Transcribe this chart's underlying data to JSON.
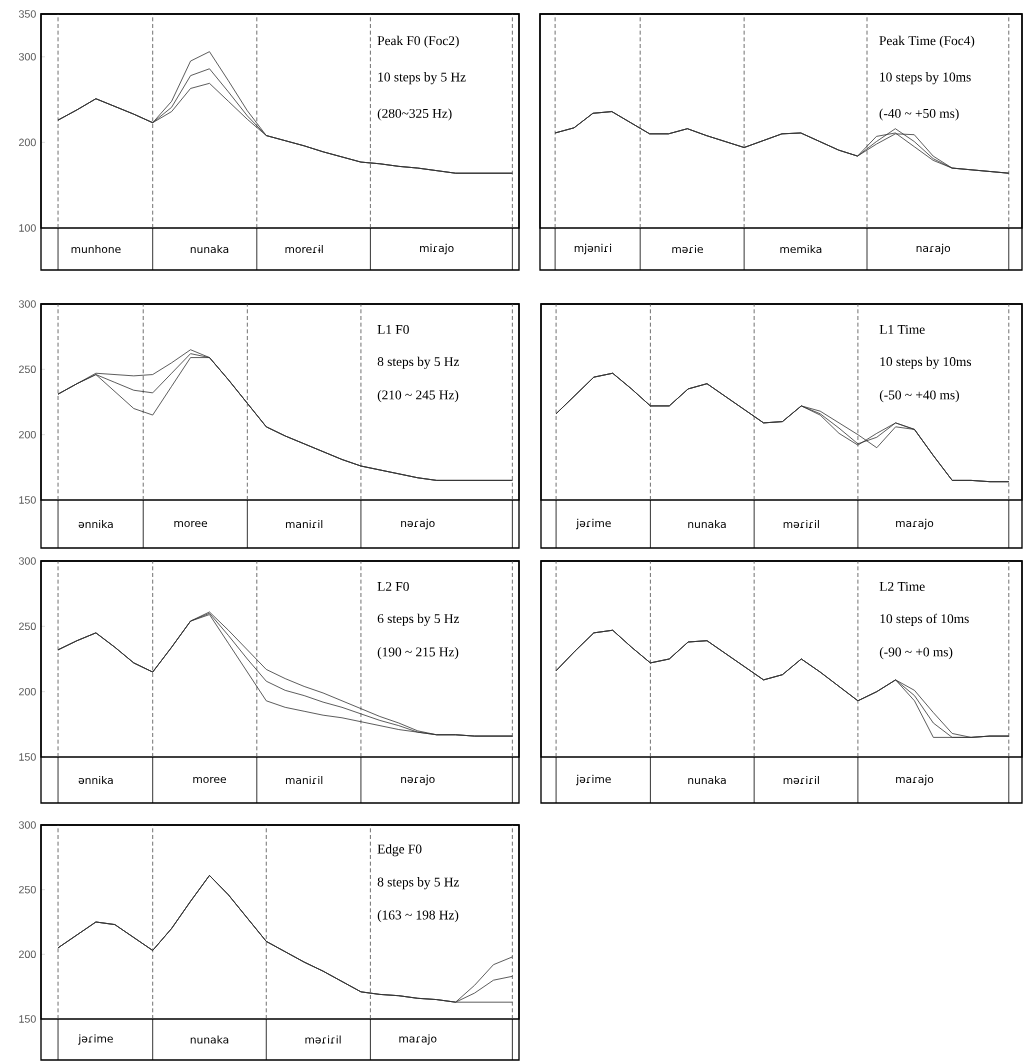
{
  "chart_data": [
    {
      "type": "line",
      "categories": [
        null,
        null,
        "munhone",
        null,
        null,
        null,
        null,
        null,
        "nunaka",
        null,
        null,
        null,
        null,
        "moreɾɨl",
        null,
        null,
        null,
        null,
        null,
        null,
        "miɾajo",
        null,
        null,
        null,
        null
      ],
      "series": [
        {
          "color": "#333333",
          "values": [
            226,
            238,
            251,
            242,
            233,
            223,
            236,
            263,
            269,
            248,
            227,
            208,
            202,
            196,
            189,
            183,
            177,
            175,
            172,
            170,
            167,
            164,
            164,
            164,
            164
          ]
        },
        {
          "color": "#333333",
          "values": [
            226,
            238,
            251,
            242,
            233,
            223,
            241,
            278,
            286,
            259,
            231,
            208,
            202,
            196,
            189,
            183,
            177,
            175,
            172,
            170,
            167,
            164,
            164,
            164,
            164
          ]
        },
        {
          "color": "#333333",
          "values": [
            226,
            238,
            251,
            242,
            233,
            223,
            248,
            295,
            306,
            272,
            237,
            208,
            202,
            196,
            189,
            183,
            177,
            175,
            172,
            170,
            167,
            164,
            164,
            164,
            164
          ]
        }
      ],
      "ylim": [
        100,
        350
      ],
      "yticks": [
        100,
        200,
        300,
        350
      ],
      "grid": "x",
      "annotations": [
        "Peak F0 (Foc2)",
        "10 steps by 5 Hz",
        "(280~325 Hz)"
      ]
    },
    {
      "type": "line",
      "categories": [
        null,
        null,
        "mjəniɾi",
        null,
        null,
        null,
        null,
        "məɾie",
        null,
        null,
        null,
        null,
        null,
        "memika",
        null,
        null,
        null,
        null,
        null,
        null,
        "naɾajo",
        null,
        null,
        null,
        null
      ],
      "series": [
        {
          "color": "#333333",
          "values": [
            211,
            217,
            234,
            236,
            223,
            210,
            210,
            216,
            208,
            201,
            194,
            202,
            210,
            211,
            201,
            191,
            184,
            207,
            211,
            195,
            179,
            170,
            168,
            166,
            164
          ]
        },
        {
          "color": "#333333",
          "values": [
            211,
            217,
            234,
            236,
            223,
            210,
            210,
            216,
            208,
            201,
            194,
            202,
            210,
            211,
            201,
            191,
            184,
            201,
            216,
            201,
            181,
            170,
            168,
            166,
            164
          ]
        },
        {
          "color": "#333333",
          "values": [
            211,
            217,
            234,
            236,
            223,
            210,
            210,
            216,
            208,
            201,
            194,
            202,
            210,
            211,
            201,
            191,
            184,
            198,
            210,
            209,
            184,
            170,
            168,
            166,
            164
          ]
        }
      ],
      "ylim": [
        100,
        350
      ],
      "yticks": [
        100,
        200,
        300,
        350
      ],
      "tick_labels": "x",
      "grid": "x",
      "annotations": [
        "Peak Time (Foc4)",
        "10 steps by 10ms",
        "(-40 ~ +50 ms)"
      ]
    },
    {
      "type": "line",
      "categories": [
        null,
        null,
        "ənnika",
        null,
        null,
        null,
        null,
        "moree",
        null,
        null,
        null,
        null,
        null,
        "maniɾil",
        null,
        null,
        null,
        null,
        null,
        "nəɾajo",
        null,
        null,
        null,
        null,
        null
      ],
      "series": [
        {
          "color": "#333333",
          "values": [
            231,
            239,
            246,
            233,
            220,
            215,
            237,
            259,
            259,
            242,
            224,
            206,
            199,
            193,
            187,
            181,
            176,
            173,
            170,
            167,
            165,
            165,
            165,
            165,
            165
          ]
        },
        {
          "color": "#333333",
          "values": [
            231,
            239,
            246,
            240,
            234,
            232,
            247,
            262,
            259,
            242,
            224,
            206,
            199,
            193,
            187,
            181,
            176,
            173,
            170,
            167,
            165,
            165,
            165,
            165,
            165
          ]
        },
        {
          "color": "#333333",
          "values": [
            231,
            239,
            247,
            246,
            245,
            246,
            255,
            265,
            259,
            242,
            224,
            206,
            199,
            193,
            187,
            181,
            176,
            173,
            170,
            167,
            165,
            165,
            165,
            165,
            165
          ]
        }
      ],
      "ylim": [
        150,
        300
      ],
      "yticks": [
        150,
        200,
        250,
        300
      ],
      "grid": "x",
      "annotations": [
        "L1 F0",
        "8 steps by 5 Hz",
        "(210 ~ 245 Hz)"
      ]
    },
    {
      "type": "line",
      "categories": [
        null,
        null,
        "jəɾime",
        null,
        null,
        null,
        null,
        null,
        "nunaka",
        null,
        null,
        null,
        null,
        "məɾiɾil",
        null,
        null,
        null,
        null,
        null,
        "maɾajo",
        null,
        null,
        null,
        null,
        null
      ],
      "series": [
        {
          "color": "#333333",
          "values": [
            216,
            230,
            244,
            247,
            235,
            222,
            222,
            235,
            239,
            229,
            219,
            209,
            210,
            222,
            215,
            201,
            192,
            201,
            209,
            204,
            184,
            165,
            165,
            164,
            164
          ]
        },
        {
          "color": "#333333",
          "values": [
            216,
            230,
            244,
            247,
            235,
            222,
            222,
            235,
            239,
            229,
            219,
            209,
            210,
            222,
            216,
            205,
            193,
            198,
            209,
            204,
            184,
            165,
            165,
            164,
            164
          ]
        },
        {
          "color": "#333333",
          "values": [
            216,
            230,
            244,
            247,
            235,
            222,
            222,
            235,
            239,
            229,
            219,
            209,
            210,
            222,
            218,
            209,
            200,
            190,
            206,
            204,
            184,
            165,
            165,
            164,
            164
          ]
        }
      ],
      "ylim": [
        150,
        300
      ],
      "yticks": [
        150,
        200,
        250,
        300
      ],
      "tick_labels": "x",
      "grid": "x",
      "annotations": [
        "L1 Time",
        "10 steps by 10ms",
        "(-50 ~ +40 ms)"
      ]
    },
    {
      "type": "line",
      "categories": [
        null,
        null,
        "ənnika",
        null,
        null,
        null,
        null,
        null,
        "moree",
        null,
        null,
        null,
        null,
        "maniɾil",
        null,
        null,
        null,
        null,
        null,
        "nəɾajo",
        null,
        null,
        null,
        null,
        null
      ],
      "series": [
        {
          "color": "#333333",
          "values": [
            232,
            239,
            245,
            234,
            222,
            215,
            234,
            254,
            259,
            237,
            215,
            193,
            188,
            185,
            182,
            180,
            177,
            174,
            171,
            169,
            167,
            167,
            166,
            166,
            166
          ]
        },
        {
          "color": "#333333",
          "values": [
            232,
            239,
            245,
            234,
            222,
            215,
            234,
            254,
            260,
            243,
            225,
            208,
            201,
            197,
            192,
            188,
            183,
            178,
            174,
            169,
            167,
            167,
            166,
            166,
            166
          ]
        },
        {
          "color": "#333333",
          "values": [
            232,
            239,
            245,
            234,
            222,
            215,
            234,
            254,
            261,
            247,
            232,
            217,
            210,
            204,
            199,
            193,
            187,
            181,
            176,
            170,
            167,
            167,
            166,
            166,
            166
          ]
        }
      ],
      "ylim": [
        150,
        300
      ],
      "yticks": [
        150,
        200,
        250,
        300
      ],
      "grid": "x",
      "annotations": [
        "L2 F0",
        "6 steps by 5 Hz",
        "(190 ~ 215 Hz)"
      ]
    },
    {
      "type": "line",
      "categories": [
        null,
        null,
        "jəɾime",
        null,
        null,
        null,
        null,
        null,
        "nunaka",
        null,
        null,
        null,
        null,
        "məɾiɾil",
        null,
        null,
        null,
        null,
        null,
        "maɾajo",
        null,
        null,
        null,
        null,
        null
      ],
      "series": [
        {
          "color": "#333333",
          "values": [
            216,
            231,
            245,
            247,
            234,
            222,
            225,
            238,
            239,
            229,
            219,
            209,
            213,
            225,
            215,
            204,
            193,
            200,
            209,
            193,
            165,
            165,
            165,
            166,
            166
          ]
        },
        {
          "color": "#333333",
          "values": [
            216,
            231,
            245,
            247,
            234,
            222,
            225,
            238,
            239,
            229,
            219,
            209,
            213,
            225,
            215,
            204,
            193,
            200,
            209,
            197,
            176,
            165,
            165,
            166,
            166
          ]
        },
        {
          "color": "#333333",
          "values": [
            216,
            231,
            245,
            247,
            234,
            222,
            225,
            238,
            239,
            229,
            219,
            209,
            213,
            225,
            215,
            204,
            193,
            200,
            209,
            201,
            184,
            168,
            165,
            166,
            166
          ]
        }
      ],
      "ylim": [
        150,
        300
      ],
      "yticks": [
        150,
        200,
        250,
        300
      ],
      "tick_labels": "x",
      "grid": "x",
      "annotations": [
        "L2 Time",
        "10 steps of 10ms",
        "(-90 ~ +0 ms)"
      ]
    },
    {
      "type": "line",
      "categories": [
        null,
        null,
        "jəɾime",
        null,
        null,
        null,
        null,
        null,
        "nunaka",
        null,
        null,
        null,
        null,
        null,
        "məɾiɾil",
        null,
        null,
        null,
        null,
        "maɾajo",
        null,
        null,
        null,
        null,
        null
      ],
      "series": [
        {
          "color": "#333333",
          "values": [
            205,
            215,
            225,
            223,
            213,
            203,
            220,
            241,
            261,
            246,
            228,
            210,
            202,
            194,
            187,
            179,
            171,
            169,
            168,
            166,
            165,
            163,
            176,
            192,
            198
          ]
        },
        {
          "color": "#333333",
          "values": [
            205,
            215,
            225,
            223,
            213,
            203,
            220,
            241,
            261,
            246,
            228,
            210,
            202,
            194,
            187,
            179,
            171,
            169,
            168,
            166,
            165,
            163,
            170,
            180,
            183
          ]
        },
        {
          "color": "#333333",
          "values": [
            205,
            215,
            225,
            223,
            213,
            203,
            220,
            241,
            261,
            246,
            228,
            210,
            202,
            194,
            187,
            179,
            171,
            169,
            168,
            166,
            165,
            163,
            163,
            163,
            163
          ]
        }
      ],
      "ylim": [
        150,
        300
      ],
      "yticks": [
        150,
        200,
        250,
        300
      ],
      "grid": "x",
      "annotations": [
        "Edge F0",
        "8 steps by 5 Hz",
        "(163 ~ 198 Hz)"
      ]
    }
  ]
}
